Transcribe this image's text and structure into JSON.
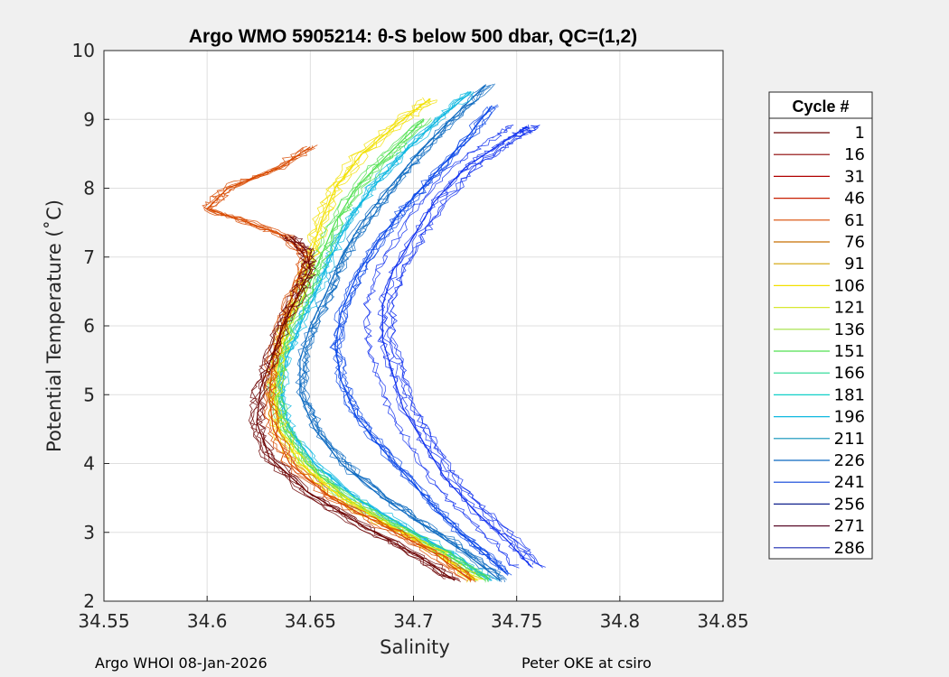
{
  "chart_data": {
    "type": "line",
    "title": "Argo WMO 5905214: θ-S below 500 dbar,  QC=(1,2)",
    "xlabel": "Salinity",
    "ylabel": "Potential Temperature (˚C)",
    "xlim": [
      34.55,
      34.85
    ],
    "ylim": [
      2,
      10
    ],
    "xticks": [
      "34.55",
      "34.6",
      "34.65",
      "34.7",
      "34.75",
      "34.8",
      "34.85"
    ],
    "yticks": [
      "2",
      "3",
      "4",
      "5",
      "6",
      "7",
      "8",
      "9",
      "10"
    ],
    "grid": true,
    "legend": {
      "title": "Cycle #",
      "placement": "right-outside",
      "entries": [
        {
          "label": "1",
          "color": "#6b0000"
        },
        {
          "label": "16",
          "color": "#8b0000"
        },
        {
          "label": "31",
          "color": "#b00000"
        },
        {
          "label": "46",
          "color": "#c81e00"
        },
        {
          "label": "61",
          "color": "#d84a00"
        },
        {
          "label": "76",
          "color": "#c86e00"
        },
        {
          "label": "91",
          "color": "#d2a000"
        },
        {
          "label": "106",
          "color": "#f2e000"
        },
        {
          "label": "121",
          "color": "#d8e830"
        },
        {
          "label": "136",
          "color": "#a0e040"
        },
        {
          "label": "151",
          "color": "#50e050"
        },
        {
          "label": "166",
          "color": "#20d890"
        },
        {
          "label": "181",
          "color": "#10d0c8"
        },
        {
          "label": "196",
          "color": "#10b8e0"
        },
        {
          "label": "211",
          "color": "#0a90b8"
        },
        {
          "label": "226",
          "color": "#0a68c0"
        },
        {
          "label": "241",
          "color": "#0a40d8"
        },
        {
          "label": "256",
          "color": "#10208c"
        },
        {
          "label": "271",
          "color": "#5a0e2a"
        },
        {
          "label": "286",
          "color": "#1a2ab0"
        }
      ]
    },
    "series": [
      {
        "name": "286",
        "color": "#1030ee",
        "x": [
          34.757,
          34.745,
          34.73,
          34.715,
          34.705,
          34.695,
          34.69,
          34.685,
          34.685,
          34.69,
          34.7,
          34.71,
          34.725,
          34.74,
          34.75,
          34.755
        ],
        "y": [
          2.5,
          2.9,
          3.3,
          3.8,
          4.3,
          4.8,
          5.3,
          5.8,
          6.3,
          6.8,
          7.3,
          7.8,
          8.3,
          8.6,
          8.8,
          8.9
        ]
      },
      {
        "name": "256",
        "color": "#0a48e8",
        "x": [
          34.745,
          34.73,
          34.715,
          34.7,
          34.685,
          34.672,
          34.665,
          34.662,
          34.665,
          34.672,
          34.682,
          34.695,
          34.71,
          34.725,
          34.738
        ],
        "y": [
          2.4,
          2.8,
          3.2,
          3.7,
          4.2,
          4.7,
          5.2,
          5.7,
          6.2,
          6.7,
          7.2,
          7.7,
          8.2,
          8.7,
          9.2
        ]
      },
      {
        "name": "226",
        "color": "#0a68c0",
        "x": [
          34.742,
          34.725,
          34.705,
          34.685,
          34.665,
          34.652,
          34.645,
          34.645,
          34.65,
          34.658,
          34.665,
          34.675,
          34.688,
          34.702,
          34.718,
          34.735
        ],
        "y": [
          2.3,
          2.7,
          3.1,
          3.5,
          4.0,
          4.5,
          5.0,
          5.5,
          6.0,
          6.5,
          7.0,
          7.5,
          8.0,
          8.5,
          9.0,
          9.5
        ]
      },
      {
        "name": "196",
        "color": "#10b8e0",
        "x": [
          34.738,
          34.718,
          34.695,
          34.672,
          34.652,
          34.64,
          34.636,
          34.638,
          34.645,
          34.653,
          34.66,
          34.668,
          34.68,
          34.695,
          34.712,
          34.728
        ],
        "y": [
          2.3,
          2.7,
          3.1,
          3.5,
          4.0,
          4.5,
          5.0,
          5.5,
          6.0,
          6.5,
          7.0,
          7.5,
          8.0,
          8.5,
          9.0,
          9.4
        ]
      },
      {
        "name": "151",
        "color": "#50e050",
        "x": [
          34.735,
          34.715,
          34.69,
          34.667,
          34.648,
          34.637,
          34.633,
          34.635,
          34.64,
          34.648,
          34.655,
          34.662,
          34.672,
          34.688,
          34.705
        ],
        "y": [
          2.3,
          2.7,
          3.1,
          3.5,
          4.0,
          4.5,
          5.0,
          5.5,
          6.0,
          6.5,
          7.0,
          7.5,
          8.0,
          8.5,
          9.0
        ]
      },
      {
        "name": "106",
        "color": "#f2e000",
        "x": [
          34.73,
          34.712,
          34.688,
          34.665,
          34.645,
          34.635,
          34.632,
          34.634,
          34.638,
          34.645,
          34.65,
          34.655,
          34.662,
          34.675,
          34.695,
          34.708
        ],
        "y": [
          2.3,
          2.7,
          3.1,
          3.5,
          4.0,
          4.5,
          5.0,
          5.5,
          6.0,
          6.5,
          7.0,
          7.5,
          8.0,
          8.5,
          9.0,
          9.3
        ]
      },
      {
        "name": "61",
        "color": "#d84a00",
        "x": [
          34.728,
          34.71,
          34.685,
          34.66,
          34.64,
          34.632,
          34.63,
          34.632,
          34.636,
          34.642,
          34.648,
          34.638,
          34.62,
          34.6,
          34.61,
          34.635,
          34.65
        ],
        "y": [
          2.3,
          2.7,
          3.1,
          3.5,
          4.0,
          4.5,
          5.0,
          5.5,
          6.0,
          6.5,
          7.0,
          7.3,
          7.5,
          7.7,
          8.0,
          8.3,
          8.6
        ]
      },
      {
        "name": "1",
        "color": "#6b0000",
        "x": [
          34.72,
          34.7,
          34.675,
          34.648,
          34.63,
          34.624,
          34.626,
          34.632,
          34.638,
          34.645,
          34.65,
          34.648,
          34.64
        ],
        "y": [
          2.3,
          2.7,
          3.1,
          3.6,
          4.1,
          4.6,
          5.1,
          5.6,
          6.1,
          6.5,
          6.8,
          7.1,
          7.3
        ]
      }
    ]
  },
  "footer": {
    "left": "Argo WHOI 08-Jan-2026",
    "right": "Peter OKE at csiro"
  }
}
